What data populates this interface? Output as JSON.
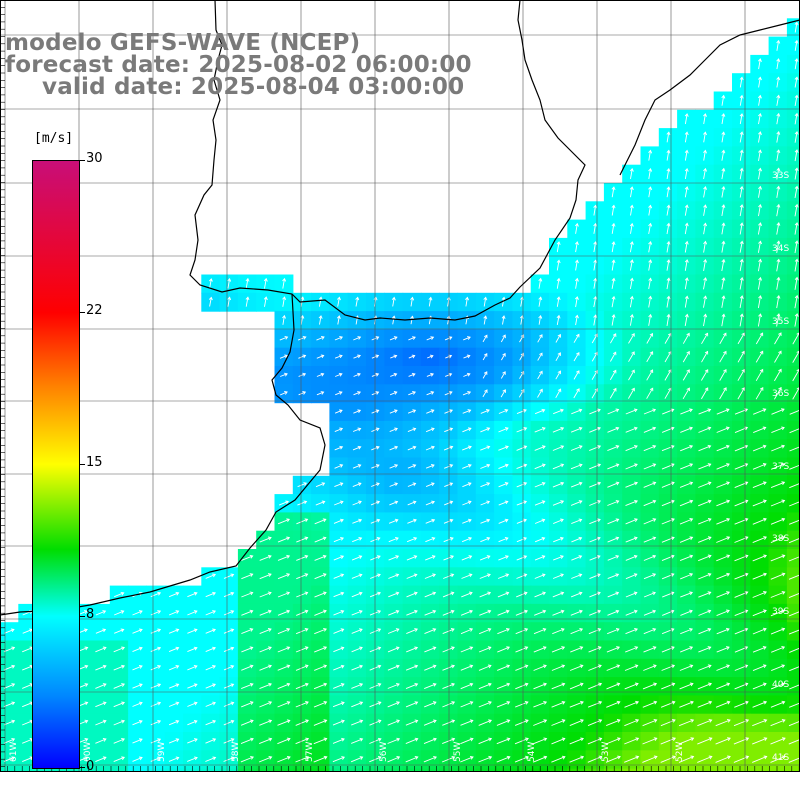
{
  "title": {
    "line1": "modelo GEFS-WAVE (NCEP)",
    "line2": "forecast date: 2025-08-02 06:00:00",
    "line3": "valid date: 2025-08-04 03:00:00"
  },
  "colorbar": {
    "unit": "[m/s]",
    "ticks": [
      {
        "label": "30",
        "value": 30
      },
      {
        "label": "22",
        "value": 22
      },
      {
        "label": "15",
        "value": 15
      },
      {
        "label": "8",
        "value": 8
      },
      {
        "label": "0",
        "value": 0
      }
    ],
    "colors": [
      "#0000ff",
      "#0088ff",
      "#00ffff",
      "#00dd00",
      "#ffff00",
      "#ff8000",
      "#ff0000",
      "#c80e78"
    ]
  },
  "grid_labels": {
    "lat": [
      "33S",
      "34S",
      "35S",
      "36S",
      "37S",
      "38S",
      "39S",
      "40S",
      "41S"
    ],
    "lon": [
      "61W",
      "60W",
      "59W",
      "58W",
      "57W",
      "56W",
      "55W",
      "54W",
      "53W",
      "52W"
    ]
  },
  "wind": {
    "description_values": "Wind speed field over Rio de la Plata estuary and adjacent Atlantic; speeds range roughly 2-14 m/s",
    "typical_direction": "from southwest toward northeast"
  }
}
